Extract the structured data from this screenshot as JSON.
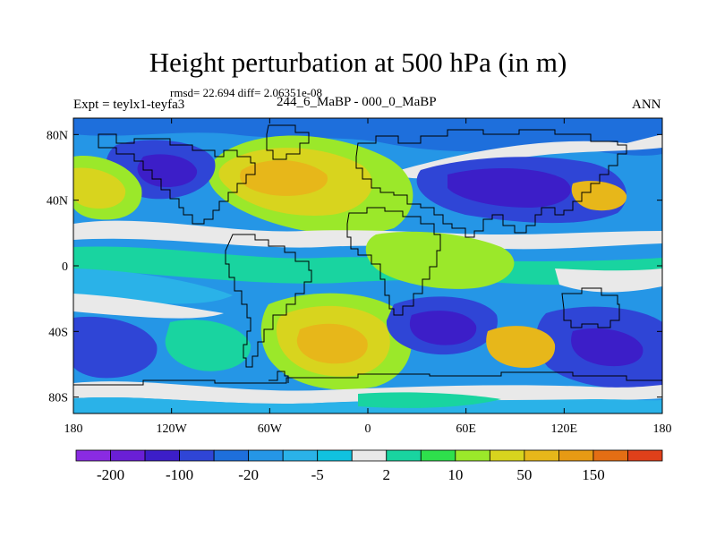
{
  "title": "Height perturbation at 500 hPa (in m)",
  "stats": "rmsd= 22.694 diff= 2.06351e-08",
  "experiment": "Expt = teylx1-teyfa3",
  "period": "244_6_MaBP - 000_0_MaBP",
  "season": "ANN",
  "map": {
    "lon_range": [
      -180,
      180
    ],
    "lat_range": [
      -90,
      90
    ],
    "lon_ticks": [
      {
        "value": -180,
        "label": "180"
      },
      {
        "value": -120,
        "label": "120W"
      },
      {
        "value": -60,
        "label": "60W"
      },
      {
        "value": 0,
        "label": "0"
      },
      {
        "value": 60,
        "label": "60E"
      },
      {
        "value": 120,
        "label": "120E"
      },
      {
        "value": 180,
        "label": "180"
      }
    ],
    "lat_ticks": [
      {
        "value": 80,
        "label": "80N"
      },
      {
        "value": 40,
        "label": "40N"
      },
      {
        "value": 0,
        "label": "0"
      },
      {
        "value": -40,
        "label": "40S"
      },
      {
        "value": -80,
        "label": "80S"
      }
    ]
  },
  "colorbar": {
    "colors": [
      "#8a2be2",
      "#6a1fd6",
      "#3c1ec8",
      "#2f45d6",
      "#1e6fdc",
      "#2596e6",
      "#2ab2e8",
      "#10c2e0",
      "#e9e9e9",
      "#19d4a0",
      "#2ee04c",
      "#9be82a",
      "#d8d41e",
      "#e7b71a",
      "#e79a14",
      "#e46e14",
      "#e0401a"
    ],
    "labels": [
      {
        "boundary": 1,
        "text": "-200"
      },
      {
        "boundary": 3,
        "text": "-100"
      },
      {
        "boundary": 5,
        "text": "-20"
      },
      {
        "boundary": 7,
        "text": "-5"
      },
      {
        "boundary": 9,
        "text": "2"
      },
      {
        "boundary": 11,
        "text": "10"
      },
      {
        "boundary": 13,
        "text": "50"
      },
      {
        "boundary": 15,
        "text": "150"
      }
    ]
  }
}
